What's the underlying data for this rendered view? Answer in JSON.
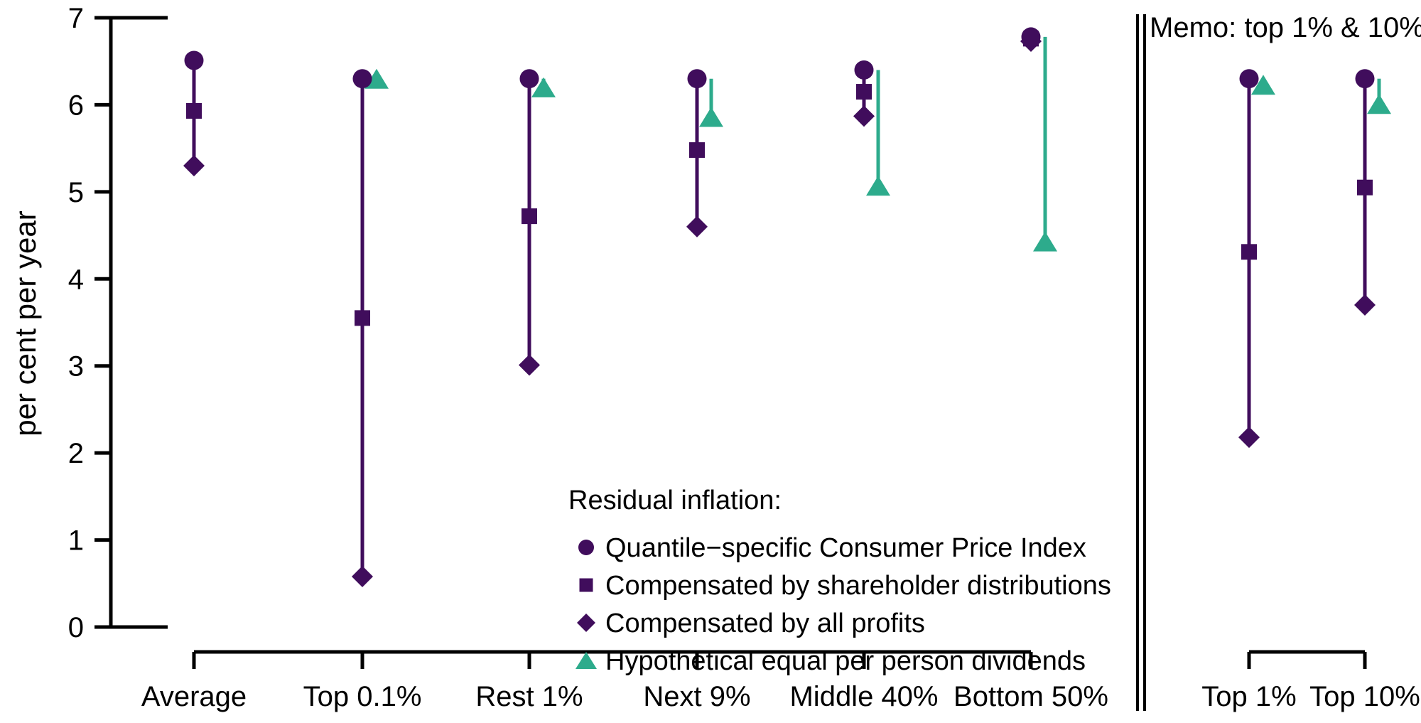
{
  "figure": {
    "y_axis_title": "per cent per year",
    "memo_title": "Memo: top 1% & 10%",
    "y_ticks": [
      0,
      1,
      2,
      3,
      4,
      5,
      6,
      7
    ],
    "colors": {
      "purple": "#400d5c",
      "teal": "#2dab8c",
      "axis": "#000000",
      "background": "#ffffff"
    }
  },
  "legend": {
    "title": "Residual inflation:",
    "items": [
      {
        "symbol": "circle",
        "color": "purple",
        "label": "Quantile−specific Consumer Price Index"
      },
      {
        "symbol": "square",
        "color": "purple",
        "label": "Compensated by shareholder distributions"
      },
      {
        "symbol": "diamond",
        "color": "purple",
        "label": "Compensated by all profits"
      },
      {
        "symbol": "triangle",
        "color": "teal",
        "label": "Hypothetical equal per person dividends"
      }
    ]
  },
  "chart_data": {
    "type": "scatter",
    "subtype": "dot-range-plot",
    "ylabel": "per cent per year",
    "ylim": [
      0,
      7
    ],
    "grid": false,
    "panels": [
      "main",
      "memo"
    ],
    "memo_panel_title": "Memo: top 1% & 10%",
    "series_names": {
      "cpi": "Quantile−specific Consumer Price Index",
      "shareholder": "Compensated by shareholder distributions",
      "profits": "Compensated by all profits",
      "equal_dividends": "Hypothetical equal per person dividends"
    },
    "groups": [
      {
        "panel": "main",
        "category": "Average",
        "cpi": 6.51,
        "shareholder": 5.93,
        "profits": 5.3,
        "equal_dividends": null
      },
      {
        "panel": "main",
        "category": "Top 0.1%",
        "cpi": 6.3,
        "shareholder": 3.55,
        "profits": 0.58,
        "equal_dividends": 6.3
      },
      {
        "panel": "main",
        "category": "Rest 1%",
        "cpi": 6.3,
        "shareholder": 4.72,
        "profits": 3.01,
        "equal_dividends": 6.2
      },
      {
        "panel": "main",
        "category": "Next 9%",
        "cpi": 6.3,
        "shareholder": 5.48,
        "profits": 4.6,
        "equal_dividends": 5.86
      },
      {
        "panel": "main",
        "category": "Middle 40%",
        "cpi": 6.4,
        "shareholder": 6.15,
        "profits": 5.87,
        "equal_dividends": 5.07
      },
      {
        "panel": "main",
        "category": "Bottom 50%",
        "cpi": 6.78,
        "shareholder": 6.76,
        "profits": 6.73,
        "equal_dividends": 4.43
      },
      {
        "panel": "memo",
        "category": "Top 1%",
        "cpi": 6.3,
        "shareholder": 4.31,
        "profits": 2.18,
        "equal_dividends": 6.23
      },
      {
        "panel": "memo",
        "category": "Top 10%",
        "cpi": 6.3,
        "shareholder": 5.05,
        "profits": 3.7,
        "equal_dividends": 6.01
      }
    ]
  }
}
